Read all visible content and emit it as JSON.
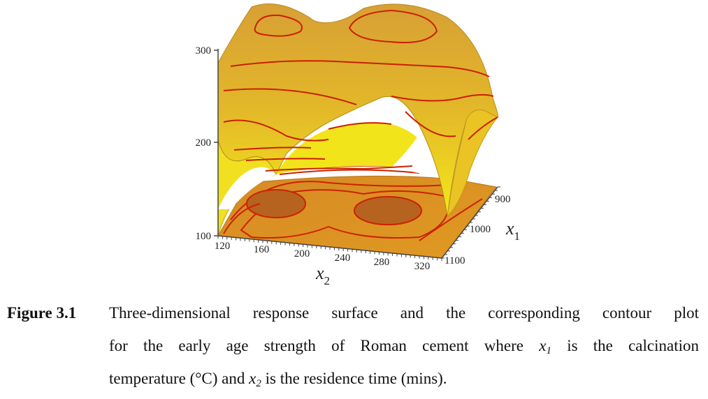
{
  "figure": {
    "label": "Figure 3.1",
    "caption_lines": [
      [
        "Three-dimensional response surface and the corresponding contour plot"
      ],
      [
        "for the early age strength of Roman cement where ",
        {
          "var": "x",
          "sub": "1"
        },
        " is the calcination"
      ],
      [
        "temperature (°C) and ",
        {
          "var": "x",
          "sub": "2"
        },
        " is the residence time (mins)."
      ]
    ]
  },
  "chart_data": {
    "type": "surface",
    "title": "",
    "z_ticks": [
      "100",
      "200",
      "300"
    ],
    "x2_axis": {
      "label": "x",
      "sub": "2",
      "ticks": [
        "120",
        "160",
        "200",
        "240",
        "280",
        "320"
      ]
    },
    "x1_axis": {
      "label": "x",
      "sub": "1",
      "ticks": [
        "900",
        "1000",
        "1100"
      ]
    },
    "zlim": [
      100,
      300
    ],
    "x2lim": [
      120,
      320
    ],
    "x1lim": [
      900,
      1100
    ],
    "colors": {
      "surface_top": "#d9a832",
      "surface_mid": "#e8c022",
      "surface_low": "#f2e418",
      "base_plane": "#d98e1e",
      "contour_line": "#cc1f00",
      "contour_fill": "#b5651d"
    }
  }
}
